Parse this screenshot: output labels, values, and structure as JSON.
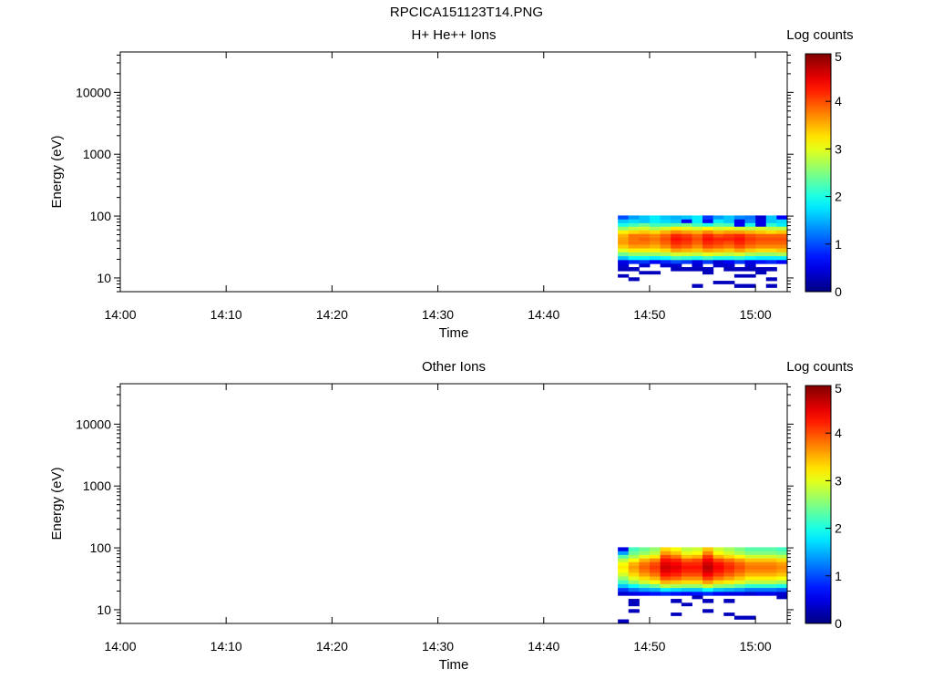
{
  "page": {
    "title": "RPCICA151123T14.PNG"
  },
  "chart_data": [
    {
      "type": "heatmap",
      "title": "H+ He++ Ions",
      "xlabel": "Time",
      "ylabel": "Energy (eV)",
      "x_ticks": [
        "14:00",
        "14:10",
        "14:20",
        "14:30",
        "14:40",
        "14:50",
        "15:00"
      ],
      "xlim": [
        "14:00",
        "15:03"
      ],
      "yscale": "log",
      "ylim": [
        6,
        45000
      ],
      "y_ticks": [
        "10",
        "100",
        "1000",
        "10000"
      ],
      "colorbar": {
        "label": "Log counts",
        "range": [
          0,
          5
        ],
        "ticks": [
          "0",
          "1",
          "2",
          "3",
          "4",
          "5"
        ],
        "colormap": "jet"
      },
      "data_time_range": [
        "14:47",
        "15:03"
      ],
      "time_bins": 16,
      "energy_bins_eV": [
        95,
        82,
        72,
        63,
        55,
        48,
        42,
        37,
        32,
        28,
        24,
        21,
        18,
        16,
        14,
        12,
        11,
        9.5,
        8.5,
        7.5,
        6.5
      ],
      "values": [
        [
          1.0,
          1.4,
          1.6,
          1.8,
          1.6,
          1.5,
          1.6,
          1.8,
          0.9,
          1.4,
          1.6,
          1.3,
          1.2,
          0.4,
          1.6,
          0.6
        ],
        [
          1.6,
          1.7,
          1.6,
          1.8,
          1.7,
          1.6,
          0.6,
          1.8,
          0.6,
          1.8,
          1.6,
          0.5,
          1.3,
          0.5,
          1.6,
          1.7
        ],
        [
          2.0,
          2.2,
          2.4,
          2.2,
          2.2,
          2.3,
          2.4,
          2.2,
          2.0,
          2.3,
          2.2,
          0.6,
          2.0,
          0.5,
          2.1,
          1.8
        ],
        [
          2.6,
          2.8,
          2.9,
          2.7,
          2.9,
          3.2,
          3.0,
          2.9,
          3.1,
          2.9,
          3.0,
          2.9,
          2.8,
          2.9,
          2.8,
          2.8
        ],
        [
          3.2,
          3.3,
          3.4,
          3.3,
          3.5,
          3.7,
          3.6,
          3.5,
          3.7,
          3.5,
          3.6,
          3.6,
          3.5,
          3.4,
          3.3,
          3.4
        ],
        [
          3.5,
          3.8,
          3.8,
          3.7,
          3.9,
          4.2,
          4.1,
          3.9,
          4.2,
          4.0,
          4.1,
          4.2,
          4.0,
          3.9,
          3.9,
          3.9
        ],
        [
          3.6,
          3.8,
          3.9,
          3.8,
          4.0,
          4.3,
          4.2,
          4.0,
          4.3,
          4.2,
          4.2,
          4.3,
          4.1,
          4.0,
          4.0,
          4.0
        ],
        [
          3.6,
          3.8,
          3.8,
          3.7,
          3.9,
          4.2,
          4.1,
          3.9,
          4.2,
          4.1,
          4.0,
          4.2,
          4.0,
          3.9,
          3.9,
          3.9
        ],
        [
          3.4,
          3.6,
          3.6,
          3.5,
          3.7,
          4.0,
          3.9,
          3.7,
          4.0,
          3.9,
          3.8,
          4.0,
          3.8,
          3.7,
          3.7,
          3.7
        ],
        [
          3.0,
          3.2,
          3.2,
          3.2,
          3.3,
          3.6,
          3.5,
          3.4,
          3.6,
          3.5,
          3.4,
          3.6,
          3.4,
          3.3,
          3.3,
          3.4
        ],
        [
          2.4,
          2.6,
          2.6,
          2.6,
          2.7,
          2.9,
          2.9,
          2.8,
          3.0,
          2.9,
          2.8,
          2.9,
          2.7,
          2.6,
          2.6,
          2.7
        ],
        [
          1.6,
          1.9,
          1.9,
          1.8,
          1.9,
          2.2,
          2.1,
          2.0,
          2.2,
          2.0,
          2.0,
          2.1,
          1.9,
          1.8,
          1.8,
          1.8
        ],
        [
          0.5,
          0.8,
          0.9,
          0.6,
          0.8,
          1.0,
          0.9,
          0.5,
          0.9,
          0.4,
          0.6,
          0.9,
          0.5,
          0.7,
          0.8,
          0.6
        ],
        [
          0.4,
          null,
          0.4,
          null,
          0.4,
          0.4,
          null,
          0.4,
          null,
          0.4,
          0.4,
          null,
          0.4,
          null,
          null,
          null
        ],
        [
          0.3,
          0.3,
          null,
          null,
          null,
          0.3,
          0.3,
          0.3,
          0.3,
          null,
          0.3,
          0.3,
          0.3,
          0.3,
          0.3,
          null
        ],
        [
          null,
          null,
          0.3,
          0.3,
          null,
          null,
          null,
          null,
          0.3,
          null,
          null,
          null,
          null,
          0.3,
          null,
          null
        ],
        [
          0.3,
          null,
          null,
          null,
          null,
          null,
          null,
          null,
          null,
          null,
          null,
          0.3,
          0.3,
          null,
          null,
          null
        ],
        [
          null,
          0.3,
          null,
          null,
          null,
          null,
          null,
          null,
          null,
          null,
          null,
          null,
          null,
          null,
          0.3,
          null
        ],
        [
          null,
          null,
          null,
          null,
          null,
          null,
          null,
          null,
          null,
          0.3,
          0.3,
          null,
          null,
          null,
          null,
          null
        ],
        [
          null,
          null,
          null,
          null,
          null,
          null,
          null,
          0.3,
          null,
          null,
          null,
          0.3,
          0.3,
          null,
          0.3,
          null
        ],
        [
          null,
          null,
          null,
          null,
          null,
          null,
          null,
          null,
          null,
          null,
          null,
          null,
          null,
          null,
          null,
          null
        ]
      ]
    },
    {
      "type": "heatmap",
      "title": "Other Ions",
      "xlabel": "Time",
      "ylabel": "Energy (eV)",
      "x_ticks": [
        "14:00",
        "14:10",
        "14:20",
        "14:30",
        "14:40",
        "14:50",
        "15:00"
      ],
      "xlim": [
        "14:00",
        "15:03"
      ],
      "yscale": "log",
      "ylim": [
        6,
        45000
      ],
      "y_ticks": [
        "10",
        "100",
        "1000",
        "10000"
      ],
      "colorbar": {
        "label": "Log counts",
        "range": [
          0,
          5
        ],
        "ticks": [
          "0",
          "1",
          "2",
          "3",
          "4",
          "5"
        ],
        "colormap": "jet"
      },
      "data_time_range": [
        "14:47",
        "15:03"
      ],
      "time_bins": 16,
      "energy_bins_eV": [
        95,
        82,
        72,
        63,
        55,
        48,
        42,
        37,
        32,
        28,
        24,
        21,
        18,
        16,
        14,
        12,
        11,
        9.5,
        8.5,
        7.5,
        6.5
      ],
      "values": [
        [
          0.5,
          2.2,
          2.4,
          2.6,
          3.3,
          3.1,
          2.8,
          2.9,
          3.4,
          2.9,
          2.7,
          2.5,
          2.3,
          2.3,
          2.3,
          2.2
        ],
        [
          1.4,
          2.4,
          2.6,
          2.8,
          3.6,
          3.4,
          3.0,
          3.1,
          3.7,
          3.1,
          2.9,
          2.7,
          2.5,
          2.5,
          2.5,
          2.4
        ],
        [
          2.3,
          2.7,
          3.0,
          3.2,
          4.0,
          3.8,
          3.4,
          3.5,
          4.1,
          3.5,
          3.3,
          3.1,
          2.9,
          2.9,
          2.9,
          2.8
        ],
        [
          2.8,
          3.1,
          3.5,
          3.7,
          4.3,
          4.2,
          3.9,
          4.0,
          4.4,
          4.0,
          3.8,
          3.6,
          3.4,
          3.4,
          3.4,
          3.3
        ],
        [
          3.1,
          3.5,
          3.8,
          4.0,
          4.5,
          4.4,
          4.2,
          4.2,
          4.6,
          4.3,
          4.1,
          3.9,
          3.7,
          3.7,
          3.7,
          3.6
        ],
        [
          3.2,
          3.6,
          3.9,
          4.1,
          4.6,
          4.5,
          4.3,
          4.3,
          4.7,
          4.4,
          4.2,
          4.0,
          3.8,
          3.8,
          3.8,
          3.7
        ],
        [
          3.1,
          3.5,
          3.8,
          4.0,
          4.5,
          4.4,
          4.2,
          4.2,
          4.6,
          4.3,
          4.1,
          3.9,
          3.7,
          3.7,
          3.7,
          3.6
        ],
        [
          2.9,
          3.3,
          3.6,
          3.8,
          4.3,
          4.2,
          4.0,
          4.0,
          4.4,
          4.1,
          3.9,
          3.7,
          3.5,
          3.5,
          3.5,
          3.4
        ],
        [
          2.6,
          3.0,
          3.3,
          3.5,
          4.0,
          3.9,
          3.7,
          3.7,
          4.1,
          3.8,
          3.6,
          3.4,
          3.2,
          3.2,
          3.2,
          3.1
        ],
        [
          2.2,
          2.6,
          2.9,
          3.1,
          3.5,
          3.4,
          3.3,
          3.3,
          3.6,
          3.3,
          3.2,
          3.0,
          2.8,
          2.8,
          2.8,
          2.7
        ],
        [
          1.6,
          1.9,
          2.2,
          2.4,
          2.8,
          2.7,
          2.6,
          2.6,
          2.9,
          2.6,
          2.5,
          2.3,
          2.1,
          2.1,
          2.1,
          2.0
        ],
        [
          0.9,
          1.2,
          1.4,
          1.5,
          1.8,
          1.7,
          1.6,
          1.6,
          1.9,
          1.6,
          1.5,
          1.4,
          1.2,
          1.2,
          1.2,
          1.1
        ],
        [
          0.4,
          0.5,
          0.6,
          0.7,
          0.8,
          0.7,
          0.6,
          0.7,
          0.8,
          0.6,
          0.5,
          0.5,
          0.4,
          0.5,
          0.5,
          0.4
        ],
        [
          null,
          null,
          null,
          null,
          null,
          null,
          null,
          0.3,
          null,
          null,
          null,
          null,
          null,
          null,
          null,
          0.3
        ],
        [
          null,
          0.3,
          null,
          null,
          null,
          0.3,
          null,
          null,
          0.3,
          null,
          0.3,
          null,
          null,
          null,
          null,
          null
        ],
        [
          null,
          0.3,
          null,
          null,
          null,
          null,
          0.3,
          null,
          null,
          null,
          null,
          null,
          null,
          null,
          null,
          null
        ],
        [
          null,
          null,
          null,
          null,
          null,
          null,
          null,
          null,
          null,
          null,
          null,
          null,
          null,
          null,
          null,
          null
        ],
        [
          null,
          0.3,
          null,
          null,
          null,
          null,
          null,
          null,
          0.3,
          null,
          null,
          null,
          null,
          null,
          null,
          null
        ],
        [
          null,
          null,
          null,
          null,
          null,
          0.3,
          null,
          null,
          null,
          null,
          0.3,
          null,
          null,
          null,
          null,
          null
        ],
        [
          null,
          null,
          null,
          null,
          null,
          null,
          null,
          null,
          null,
          null,
          null,
          0.3,
          0.3,
          null,
          null,
          null
        ],
        [
          0.3,
          null,
          null,
          null,
          null,
          null,
          null,
          null,
          null,
          null,
          null,
          null,
          null,
          null,
          null,
          null
        ]
      ]
    }
  ]
}
